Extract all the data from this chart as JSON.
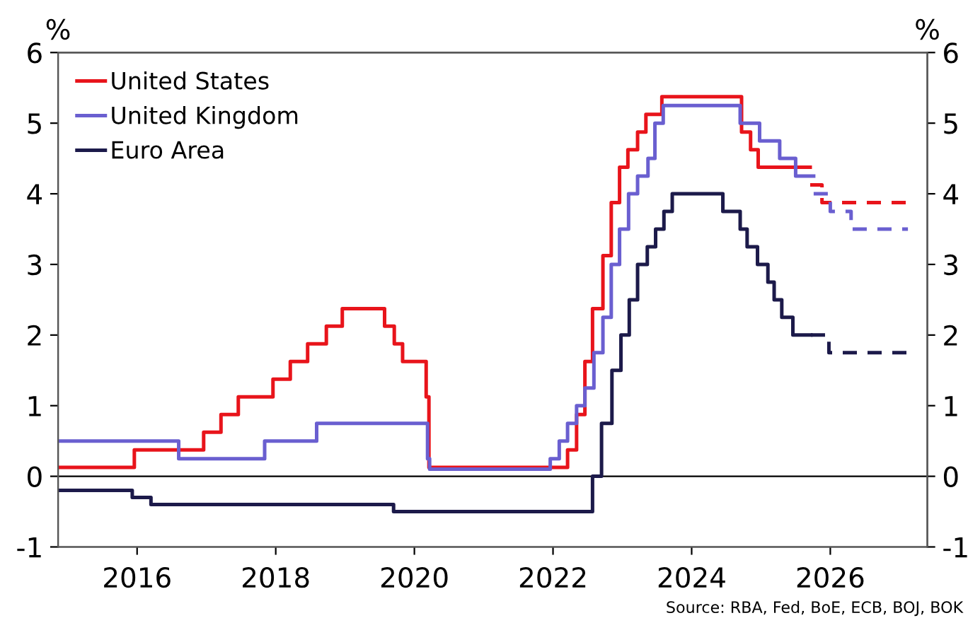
{
  "chart_data": {
    "type": "step",
    "ylabel": "%",
    "y2label": "%",
    "xlim": [
      2014.86,
      2027.4
    ],
    "xticks": [
      2016,
      2018,
      2020,
      2022,
      2024,
      2026
    ],
    "ylim": [
      -1,
      6
    ],
    "yticks": [
      -1,
      0,
      1,
      2,
      3,
      4,
      5,
      6
    ],
    "y2lim": [
      -1,
      6
    ],
    "y2ticks": [
      -1,
      0,
      1,
      2,
      3,
      4,
      5,
      6
    ],
    "grid": false,
    "legend": "top left",
    "line_style": "solid",
    "marker": "none",
    "ref_lines": [
      {
        "axis": "y",
        "value": 0,
        "color": "#000000"
      }
    ],
    "annotations": [
      "Source: RBA, Fed, BoE, ECB, BOJ, BOK"
    ],
    "series": [
      {
        "name": "United States",
        "color": "#e8141b",
        "x": [
          2014.87,
          2015.96,
          2016.96,
          2017.21,
          2017.46,
          2017.96,
          2018.21,
          2018.46,
          2018.73,
          2018.96,
          2019.57,
          2019.71,
          2019.83,
          2020.17,
          2020.21,
          2022.21,
          2022.34,
          2022.46,
          2022.57,
          2022.72,
          2022.84,
          2022.96,
          2023.08,
          2023.22,
          2023.34,
          2023.57,
          2024.72,
          2024.85,
          2024.96,
          2025.71
        ],
        "values": [
          0.125,
          0.375,
          0.625,
          0.875,
          1.125,
          1.375,
          1.625,
          1.875,
          2.125,
          2.375,
          2.125,
          1.875,
          1.625,
          1.125,
          0.125,
          0.375,
          0.875,
          1.625,
          2.375,
          3.125,
          3.875,
          4.375,
          4.625,
          4.875,
          5.125,
          5.375,
          4.875,
          4.625,
          4.375,
          4.375
        ]
      },
      {
        "color": "#e8141b",
        "line_style": "dashed",
        "x": [
          2025.71,
          2025.88,
          2027.12
        ],
        "values": [
          4.125,
          3.875,
          3.875
        ]
      },
      {
        "name": "United Kingdom",
        "color": "#6a5fd0",
        "x": [
          2014.87,
          2016.6,
          2017.84,
          2018.59,
          2020.19,
          2020.22,
          2021.96,
          2022.09,
          2022.21,
          2022.34,
          2022.46,
          2022.59,
          2022.72,
          2022.84,
          2022.96,
          2023.09,
          2023.22,
          2023.37,
          2023.47,
          2023.59,
          2024.7,
          2024.98,
          2025.27,
          2025.5,
          2025.76
        ],
        "values": [
          0.5,
          0.25,
          0.5,
          0.75,
          0.25,
          0.1,
          0.25,
          0.5,
          0.75,
          1.0,
          1.25,
          1.75,
          2.25,
          3.0,
          3.5,
          4.0,
          4.25,
          4.5,
          5.0,
          5.25,
          5.0,
          4.75,
          4.5,
          4.25,
          4.25
        ]
      },
      {
        "color": "#6a5fd0",
        "line_style": "dashed",
        "x": [
          2025.76,
          2026.0,
          2026.3,
          2027.12
        ],
        "values": [
          4.0,
          3.75,
          3.5,
          3.5
        ]
      },
      {
        "name": "Euro Area",
        "color": "#1c1a4a",
        "x": [
          2014.87,
          2015.93,
          2016.2,
          2019.7,
          2022.57,
          2022.7,
          2022.85,
          2022.98,
          2023.1,
          2023.22,
          2023.36,
          2023.48,
          2023.6,
          2023.72,
          2024.45,
          2024.7,
          2024.8,
          2024.95,
          2025.1,
          2025.19,
          2025.3,
          2025.46,
          2025.72
        ],
        "values": [
          -0.2,
          -0.3,
          -0.4,
          -0.5,
          0,
          0.75,
          1.5,
          2.0,
          2.5,
          3.0,
          3.25,
          3.5,
          3.75,
          4.0,
          3.75,
          3.5,
          3.25,
          3.0,
          2.75,
          2.5,
          2.25,
          2.0,
          2.0
        ]
      },
      {
        "color": "#1c1a4a",
        "line_style": "dashed",
        "x": [
          2025.72,
          2025.98,
          2027.12
        ],
        "values": [
          2.0,
          1.75,
          1.75
        ]
      }
    ]
  }
}
